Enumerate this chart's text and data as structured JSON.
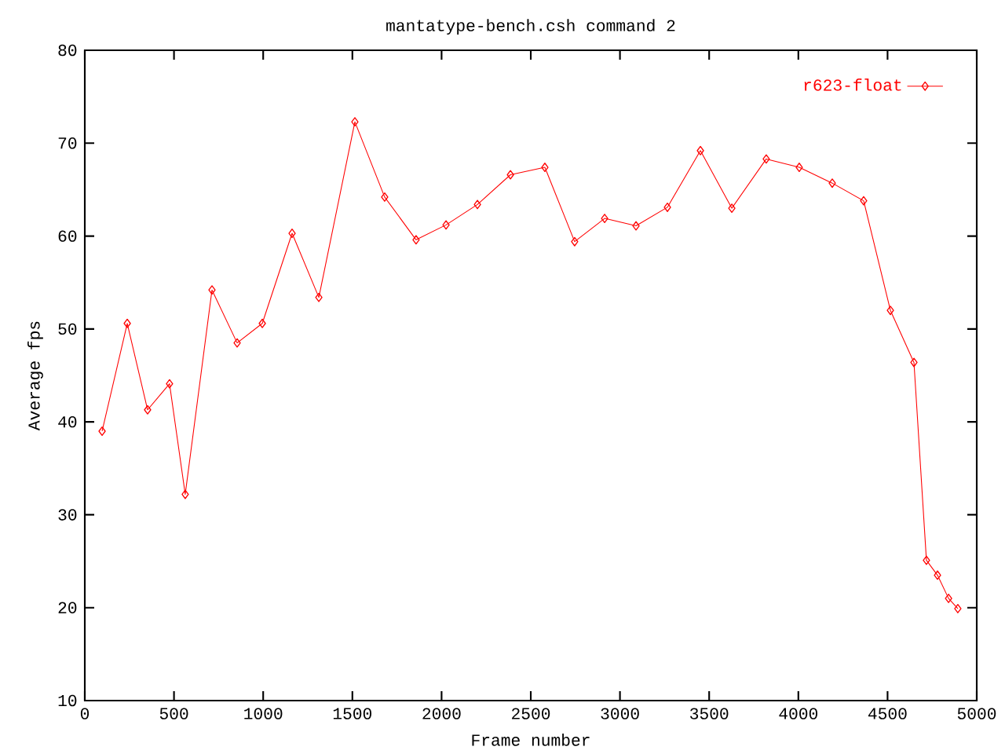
{
  "chart_data": {
    "type": "line",
    "title": "mantatype-bench.csh command 2",
    "xlabel": "Frame number",
    "ylabel": "Average fps",
    "x": [
      97,
      238,
      352,
      475,
      563,
      713,
      854,
      995,
      1162,
      1312,
      1514,
      1681,
      1857,
      2025,
      2201,
      2386,
      2579,
      2746,
      2914,
      3090,
      3266,
      3451,
      3627,
      3820,
      4005,
      4190,
      4366,
      4516,
      4648,
      4718,
      4780,
      4842,
      4894
    ],
    "series": [
      {
        "name": "r623-float",
        "color": "#ff0000",
        "values": [
          39,
          50.6,
          41.3,
          44.1,
          32.2,
          54.2,
          48.5,
          50.6,
          60.3,
          53.4,
          72.3,
          64.2,
          59.6,
          61.2,
          63.4,
          66.6,
          67.4,
          59.4,
          61.9,
          61.1,
          63.1,
          69.2,
          63.0,
          68.3,
          67.4,
          65.7,
          63.8,
          52.0,
          46.4,
          25.1,
          23.5,
          21.0,
          19.9
        ]
      }
    ],
    "xlim": [
      0,
      5000
    ],
    "ylim": [
      10,
      80
    ],
    "xticks": [
      0,
      500,
      1000,
      1500,
      2000,
      2500,
      3000,
      3500,
      4000,
      4500,
      5000
    ],
    "yticks": [
      10,
      20,
      30,
      40,
      50,
      60,
      70,
      80
    ],
    "grid": false,
    "legend": "top right",
    "marker": "diamond",
    "line_style": "solid"
  }
}
